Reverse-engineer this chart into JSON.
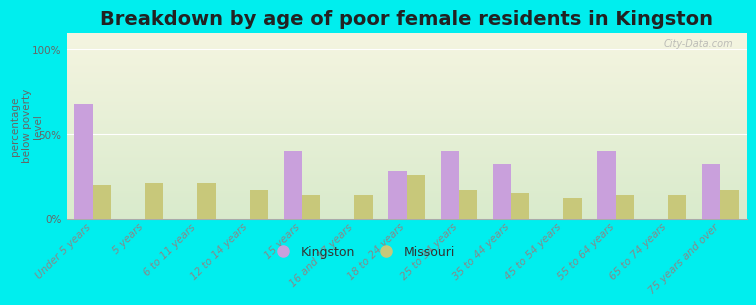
{
  "title": "Breakdown by age of poor female residents in Kingston",
  "ylabel": "percentage\nbelow poverty\nlevel",
  "categories": [
    "Under 5 years",
    "5 years",
    "6 to 11 years",
    "12 to 14 years",
    "15 years",
    "16 and 17 years",
    "18 to 24 years",
    "25 to 34 years",
    "35 to 44 years",
    "45 to 54 years",
    "55 to 64 years",
    "65 to 74 years",
    "75 years and over"
  ],
  "kingston_values": [
    68,
    0,
    0,
    0,
    40,
    0,
    28,
    40,
    32,
    0,
    40,
    0,
    32
  ],
  "missouri_values": [
    20,
    21,
    21,
    17,
    14,
    14,
    26,
    17,
    15,
    12,
    14,
    14,
    17
  ],
  "kingston_color": "#c9a0dc",
  "missouri_color": "#c8c87a",
  "background_color": "#00eeee",
  "yticks": [
    0,
    50,
    100
  ],
  "ytick_labels": [
    "0%",
    "50%",
    "100%"
  ],
  "ylim": [
    0,
    110
  ],
  "bar_width": 0.35,
  "legend_labels": [
    "Kingston",
    "Missouri"
  ],
  "watermark": "City-Data.com",
  "title_fontsize": 14,
  "axis_label_fontsize": 7.5,
  "tick_fontsize": 7.5,
  "legend_fontsize": 9
}
